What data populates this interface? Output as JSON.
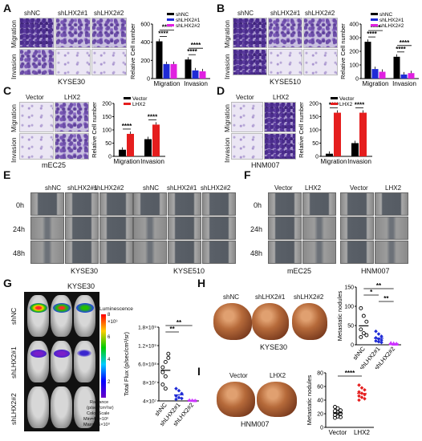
{
  "panels": {
    "A": {
      "letter": "A",
      "cols": [
        "shNC",
        "shLHX2#1",
        "shLHX2#2"
      ],
      "rows": [
        "Migration",
        "Invasion"
      ],
      "cell": "KYSE30"
    },
    "B": {
      "letter": "B",
      "cols": [
        "shNC",
        "shLHX2#1",
        "shLHX2#2"
      ],
      "rows": [
        "Migration",
        "Invasion"
      ],
      "cell": "KYSE510"
    },
    "C": {
      "letter": "C",
      "cols": [
        "Vector",
        "LHX2"
      ],
      "rows": [
        "Migration",
        "Invasion"
      ],
      "cell": "mEC25"
    },
    "D": {
      "letter": "D",
      "cols": [
        "Vector",
        "LHX2"
      ],
      "rows": [
        "Migration",
        "Invasion"
      ],
      "cell": "HNM007"
    },
    "E": {
      "letter": "E",
      "cols": [
        "shNC",
        "shLHX2#1",
        "shLHX2#2",
        "shNC",
        "shLHX2#1",
        "shLHX2#2"
      ],
      "rows": [
        "0h",
        "24h",
        "48h"
      ],
      "cells": [
        "KYSE30",
        "KYSE510"
      ]
    },
    "F": {
      "letter": "F",
      "cols": [
        "Vector",
        "LHX2",
        "Vector",
        "LHX2"
      ],
      "rows": [
        "0h",
        "24h",
        "48h"
      ],
      "cells": [
        "mEC25",
        "HNM007"
      ]
    },
    "G": {
      "letter": "G",
      "cell": "KYSE30",
      "rows": [
        "shNC",
        "shLHX2#1",
        "shLHX2#2"
      ],
      "luminescence": "Luminescence",
      "scale_ticks": [
        "8",
        "6",
        "4",
        "2"
      ],
      "exp": "×10⁹",
      "legend_lines": [
        "Radiance",
        "(p/sec/cm²/sr)",
        "Color Scale",
        "Min=4.6×10⁶",
        "Max=7.6×10⁹"
      ]
    },
    "H": {
      "letter": "H",
      "cols": [
        "shNC",
        "shLHX2#1",
        "shLHX2#2"
      ],
      "cell": "KYSE30"
    },
    "I": {
      "letter": "I",
      "cols": [
        "Vector",
        "LHX2"
      ],
      "cell": "HNM007"
    }
  },
  "chart_data": [
    {
      "id": "A",
      "type": "bar",
      "categories": [
        "Migration",
        "Invasion"
      ],
      "series": [
        {
          "name": "shNC",
          "values": [
            410,
            210
          ]
        },
        {
          "name": "shLHX2#1",
          "values": [
            160,
            90
          ]
        },
        {
          "name": "shLHX2#2",
          "values": [
            160,
            80
          ]
        }
      ],
      "ylabel": "Relative Cell number",
      "ylim": [
        0,
        600
      ],
      "yticks": [
        0,
        200,
        400,
        600
      ],
      "legend_placement": "top-right",
      "annotations": [
        "****",
        "****",
        "****",
        "****"
      ]
    },
    {
      "id": "B",
      "type": "bar",
      "categories": [
        "Migration",
        "Invasion"
      ],
      "series": [
        {
          "name": "shNC",
          "values": [
            270,
            160
          ]
        },
        {
          "name": "shLHX2#1",
          "values": [
            70,
            30
          ]
        },
        {
          "name": "shLHX2#2",
          "values": [
            50,
            40
          ]
        }
      ],
      "ylabel": "Relative Cell number",
      "ylim": [
        0,
        400
      ],
      "yticks": [
        0,
        100,
        200,
        300,
        400
      ],
      "legend_placement": "top-right",
      "annotations": [
        "****",
        "****",
        "****",
        "****"
      ]
    },
    {
      "id": "C",
      "type": "bar",
      "categories": [
        "Migration",
        "Invasion"
      ],
      "series": [
        {
          "name": "Vector",
          "values": [
            25,
            65
          ]
        },
        {
          "name": "LHX2",
          "values": [
            85,
            120
          ]
        }
      ],
      "ylabel": "Relative Cell number",
      "ylim": [
        0,
        200
      ],
      "yticks": [
        0,
        50,
        100,
        150,
        200
      ],
      "legend_placement": "top-right",
      "annotations": [
        "****",
        "****"
      ]
    },
    {
      "id": "D",
      "type": "bar",
      "categories": [
        "Migration",
        "Invasion"
      ],
      "series": [
        {
          "name": "Vector",
          "values": [
            10,
            50
          ]
        },
        {
          "name": "LHX2",
          "values": [
            165,
            165
          ]
        }
      ],
      "ylabel": "Relative Cell number",
      "ylim": [
        0,
        200
      ],
      "yticks": [
        0,
        50,
        100,
        150,
        200
      ],
      "legend_placement": "top-right",
      "annotations": [
        "****",
        "****"
      ]
    },
    {
      "id": "G",
      "type": "scatter",
      "categories": [
        "shNC",
        "shLHX2#1",
        "shLHX2#2"
      ],
      "ylabel": "Total Flux (p/sec/cm²/sr)",
      "ytick_labels": [
        "4×10⁷",
        "8×10⁷",
        "6.0×10⁸",
        "1.2×10⁹",
        "1.8×10⁹"
      ],
      "ylim": [
        0,
        1800000000
      ],
      "points": [
        [
          820000000,
          950000000,
          1150000000,
          700000000,
          600000000,
          1050000000,
          400000000,
          300000000
        ],
        [
          300000000,
          250000000,
          180000000,
          120000000,
          80000000,
          60000000,
          40000000
        ],
        [
          20000000,
          15000000,
          10000000
        ]
      ],
      "annotations": [
        "**",
        "**"
      ]
    },
    {
      "id": "H",
      "type": "scatter",
      "categories": [
        "shNC",
        "shLHX2#1",
        "shLHX2#2"
      ],
      "ylabel": "Metastatic nodules",
      "ylim": [
        0,
        150
      ],
      "yticks": [
        0,
        50,
        100,
        150
      ],
      "points": [
        [
          95,
          75,
          60,
          40,
          30,
          25,
          20
        ],
        [
          35,
          28,
          22,
          18,
          15,
          12,
          10,
          8,
          6
        ],
        [
          5,
          4,
          3,
          3,
          2,
          2
        ]
      ],
      "annotations": [
        "*",
        "**",
        "**"
      ]
    },
    {
      "id": "I",
      "type": "scatter",
      "categories": [
        "Vector",
        "LHX2"
      ],
      "ylabel": "Metastatic nodules",
      "ylim": [
        0,
        80
      ],
      "yticks": [
        0,
        20,
        40,
        60,
        80
      ],
      "points": [
        [
          30,
          28,
          25,
          24,
          22,
          20,
          18,
          16,
          15,
          14
        ],
        [
          62,
          58,
          55,
          52,
          50,
          48,
          46,
          44,
          42,
          40
        ]
      ],
      "annotations": [
        "****"
      ]
    }
  ],
  "colors": {
    "black": "#000000",
    "blue": "#1f2bd6",
    "magenta": "#e020e0",
    "red": "#e51e1e",
    "purple": "#cc33ff"
  }
}
